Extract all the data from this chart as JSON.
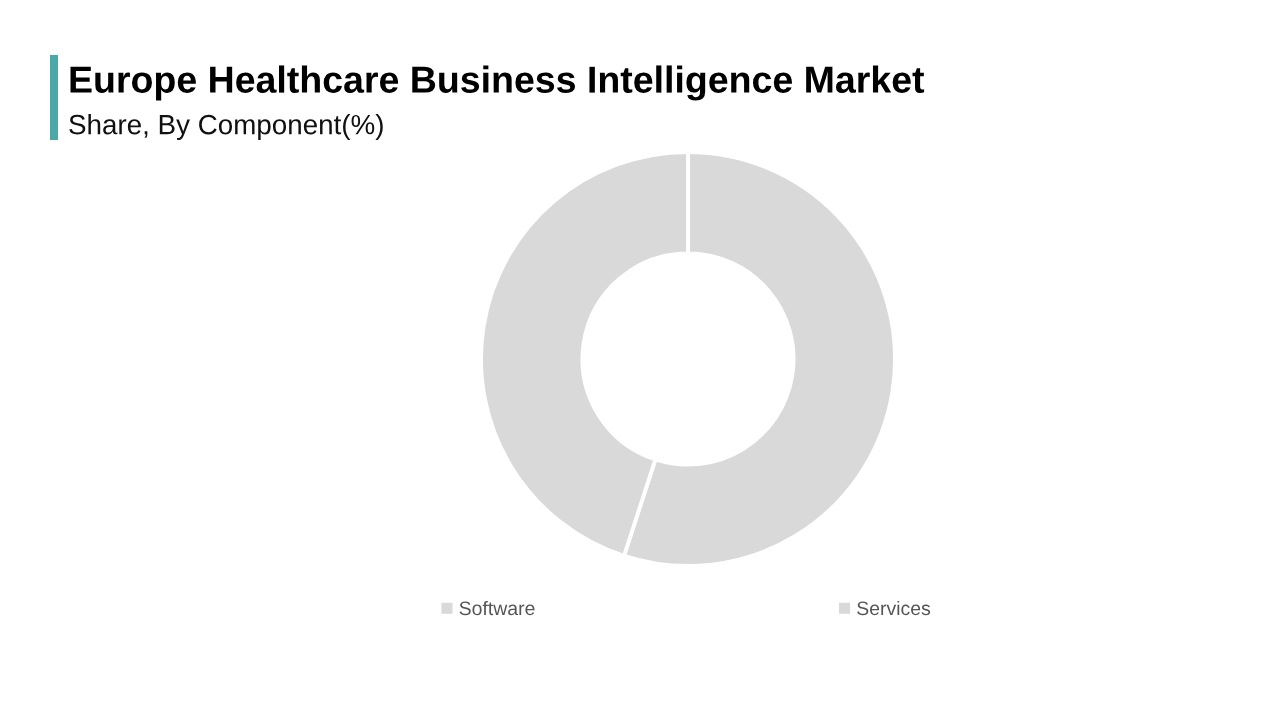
{
  "chart_data": {
    "type": "donut",
    "title": "Europe Healthcare Business Intelligence Market",
    "subtitle": "Share, By Component(%)",
    "categories": [
      "Software",
      "Services"
    ],
    "values": [
      55,
      45
    ],
    "colors": [
      "#d9d9d9",
      "#d9d9d9"
    ],
    "legend": "bottom"
  }
}
